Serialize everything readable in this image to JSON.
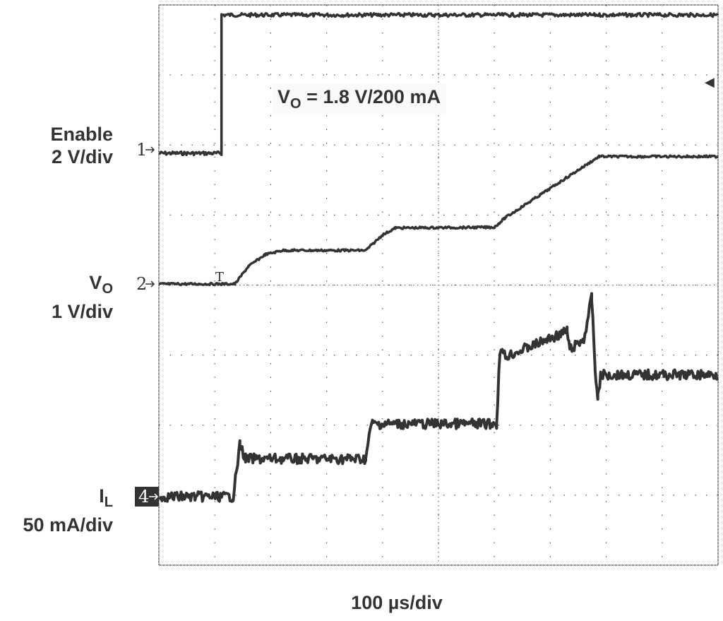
{
  "chart_data": {
    "type": "line",
    "title": "",
    "annotation": {
      "main": "V",
      "sub": "O",
      "rest": " = 1.8 V/200 mA"
    },
    "xlabel": {
      "value": "100 ",
      "unit": "µs/div"
    },
    "x_unit": "µs",
    "xlim": [
      0,
      1000
    ],
    "grid": true,
    "divisions": {
      "horizontal": 10,
      "vertical": 8
    },
    "colors": {
      "trace": "#333333",
      "grid": "#555555",
      "background": "#ffffff"
    },
    "series": [
      {
        "channel": "1",
        "label": "Enable",
        "scale": "2 V/div",
        "unit": "V",
        "points": [
          [
            0,
            -0.1
          ],
          [
            112,
            -0.1
          ],
          [
            112,
            3.85
          ],
          [
            1000,
            3.85
          ]
        ]
      },
      {
        "channel": "2",
        "label_main": "V",
        "label_sub": "O",
        "scale": "1 V/div",
        "unit": "V",
        "points": [
          [
            0,
            0
          ],
          [
            136,
            0
          ],
          [
            160,
            0.25
          ],
          [
            190,
            0.42
          ],
          [
            221,
            0.48
          ],
          [
            370,
            0.48
          ],
          [
            400,
            0.7
          ],
          [
            423,
            0.8
          ],
          [
            600,
            0.81
          ],
          [
            620,
            0.95
          ],
          [
            787,
            1.82
          ],
          [
            1000,
            1.82
          ]
        ]
      },
      {
        "channel": "4",
        "label_main": "I",
        "label_sub": "L",
        "scale": "50 mA/div",
        "unit": "mA",
        "points": [
          [
            0,
            0
          ],
          [
            133,
            0
          ],
          [
            145,
            37
          ],
          [
            155,
            27
          ],
          [
            370,
            27
          ],
          [
            380,
            52
          ],
          [
            604,
            52
          ],
          [
            610,
            105
          ],
          [
            620,
            100
          ],
          [
            730,
            118
          ],
          [
            735,
            105
          ],
          [
            760,
            112
          ],
          [
            774,
            142
          ],
          [
            780,
            92
          ],
          [
            785,
            70
          ],
          [
            790,
            87
          ],
          [
            1000,
            87
          ]
        ]
      }
    ],
    "markers": {
      "ch1": "1",
      "ch2": "2",
      "ch4": "4",
      "trigger_level": "◀",
      "trigger_pos": "T"
    }
  }
}
